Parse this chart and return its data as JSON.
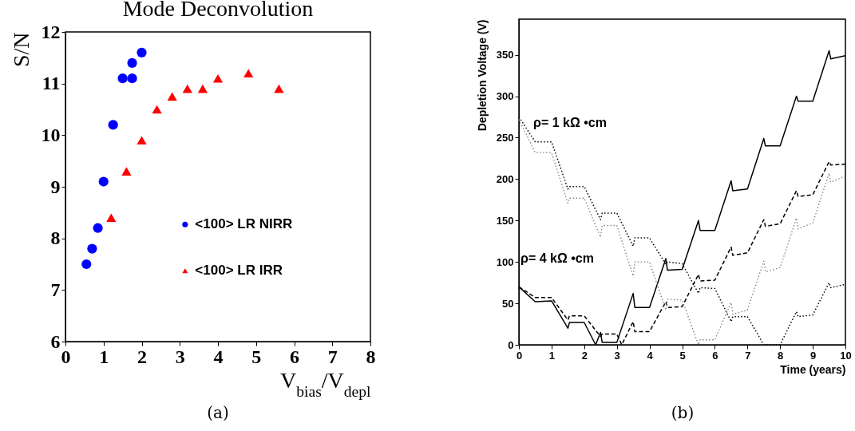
{
  "chart_data": [
    {
      "type": "scatter",
      "title": "Mode Deconvolution",
      "xlabel": "V$_{bias}$/V$_{depl}$",
      "ylabel": "S/N",
      "xlim": [
        0,
        8
      ],
      "ylim": [
        6,
        12
      ],
      "xticks": [
        0,
        1,
        2,
        3,
        4,
        5,
        6,
        7,
        8
      ],
      "yticks": [
        6,
        7,
        8,
        9,
        10,
        11,
        12
      ],
      "legend": "right",
      "grid": false,
      "annotations": [
        "(a)"
      ],
      "series": [
        {
          "name": "<100> LR NIRR",
          "color": "#0000ff",
          "marker": "circle",
          "x": [
            0.55,
            0.7,
            0.85,
            1,
            1.25,
            1.5,
            1.75,
            1.75,
            2
          ],
          "values": [
            7.5,
            7.8,
            8.2,
            9.1,
            10.2,
            11.1,
            11.4,
            11.1,
            11.6
          ]
        },
        {
          "name": "<100> LR IRR",
          "color": "#ff0000",
          "marker": "triangle",
          "x": [
            1.2,
            1.6,
            2,
            2.4,
            2.8,
            3.2,
            3.6,
            4,
            4.8,
            5.6
          ],
          "values": [
            8.4,
            9.3,
            9.9,
            10.5,
            10.75,
            10.9,
            10.9,
            11.1,
            11.2,
            10.9
          ]
        }
      ]
    },
    {
      "type": "line",
      "xlabel": "Time (years)",
      "ylabel": "Depletion Voltage (V)",
      "xlim": [
        0,
        10
      ],
      "ylim": [
        0,
        393
      ],
      "xticks": [
        0,
        1,
        2,
        3,
        4,
        5,
        6,
        7,
        8,
        9,
        10
      ],
      "yticks": [
        0,
        50,
        100,
        150,
        200,
        250,
        300,
        350
      ],
      "grid": false,
      "annotations": [
        "ρ= 1 kΩ •cm",
        "ρ= 4 kΩ •cm",
        "(b)"
      ],
      "series": [
        {
          "color": "#000000",
          "line_style": "solid",
          "x": [
            0,
            0.5,
            1,
            1.5,
            1.55,
            2,
            2.35,
            2.5,
            2.55,
            3,
            3.5,
            3.55,
            4,
            4.5,
            4.55,
            5,
            5.5,
            5.55,
            6,
            6.5,
            6.55,
            7,
            7.5,
            7.55,
            8,
            8.5,
            8.55,
            9,
            9.5,
            9.55,
            10
          ],
          "values": [
            70,
            52,
            53,
            20,
            27,
            27,
            0,
            15,
            3,
            3,
            62,
            45,
            45,
            104,
            90,
            91,
            150,
            138,
            138,
            198,
            186,
            188,
            249,
            240,
            240,
            300,
            294,
            294,
            355,
            345,
            349
          ]
        },
        {
          "color": "#000000",
          "line_style": "dashed",
          "x": [
            0,
            0.5,
            1,
            1.5,
            1.55,
            2,
            2.5,
            2.55,
            3,
            3.15,
            3.5,
            3.55,
            4,
            4.5,
            4.55,
            5,
            5.5,
            5.55,
            6,
            6.5,
            6.55,
            7,
            7.5,
            7.55,
            8,
            8.5,
            8.55,
            9,
            9.5,
            9.55,
            10
          ],
          "values": [
            70,
            57,
            57,
            30,
            35,
            35,
            10,
            13,
            13,
            0,
            28,
            16,
            16,
            52,
            45,
            46,
            85,
            77,
            78,
            118,
            108,
            111,
            151,
            143,
            146,
            186,
            179,
            181,
            221,
            217,
            218
          ]
        },
        {
          "color": "#000000",
          "line_style": "dotted",
          "x": [
            0,
            0.5,
            1,
            1.5,
            1.55,
            2,
            2.5,
            2.55,
            3,
            3.5,
            3.55,
            4,
            4.5,
            4.55,
            5,
            5.5,
            5.55,
            6,
            6.5,
            6.55,
            7,
            7.5,
            8,
            8.5,
            8.55,
            9,
            9.5,
            9.55,
            10
          ],
          "values": [
            275,
            245,
            245,
            188,
            191,
            191,
            151,
            159,
            159,
            119,
            129,
            129,
            97,
            100,
            98,
            62,
            69,
            68,
            28,
            34,
            34,
            0,
            0,
            40,
            34,
            36,
            75,
            69,
            73
          ]
        },
        {
          "color": "#808080",
          "line_style": "dotted",
          "x": [
            0,
            0.5,
            1,
            1.5,
            1.55,
            2,
            2.5,
            2.55,
            3,
            3.5,
            3.55,
            4,
            4.5,
            4.55,
            5,
            5.5,
            5.55,
            6,
            6.5,
            6.55,
            7,
            7.5,
            7.55,
            8,
            8.5,
            8.55,
            9,
            9.5,
            9.55,
            10
          ],
          "values": [
            272,
            232,
            232,
            171,
            177,
            177,
            130,
            144,
            144,
            83,
            100,
            100,
            42,
            55,
            54,
            0,
            6,
            6,
            51,
            37,
            42,
            101,
            88,
            93,
            153,
            140,
            147,
            207,
            196,
            204
          ]
        }
      ]
    }
  ]
}
